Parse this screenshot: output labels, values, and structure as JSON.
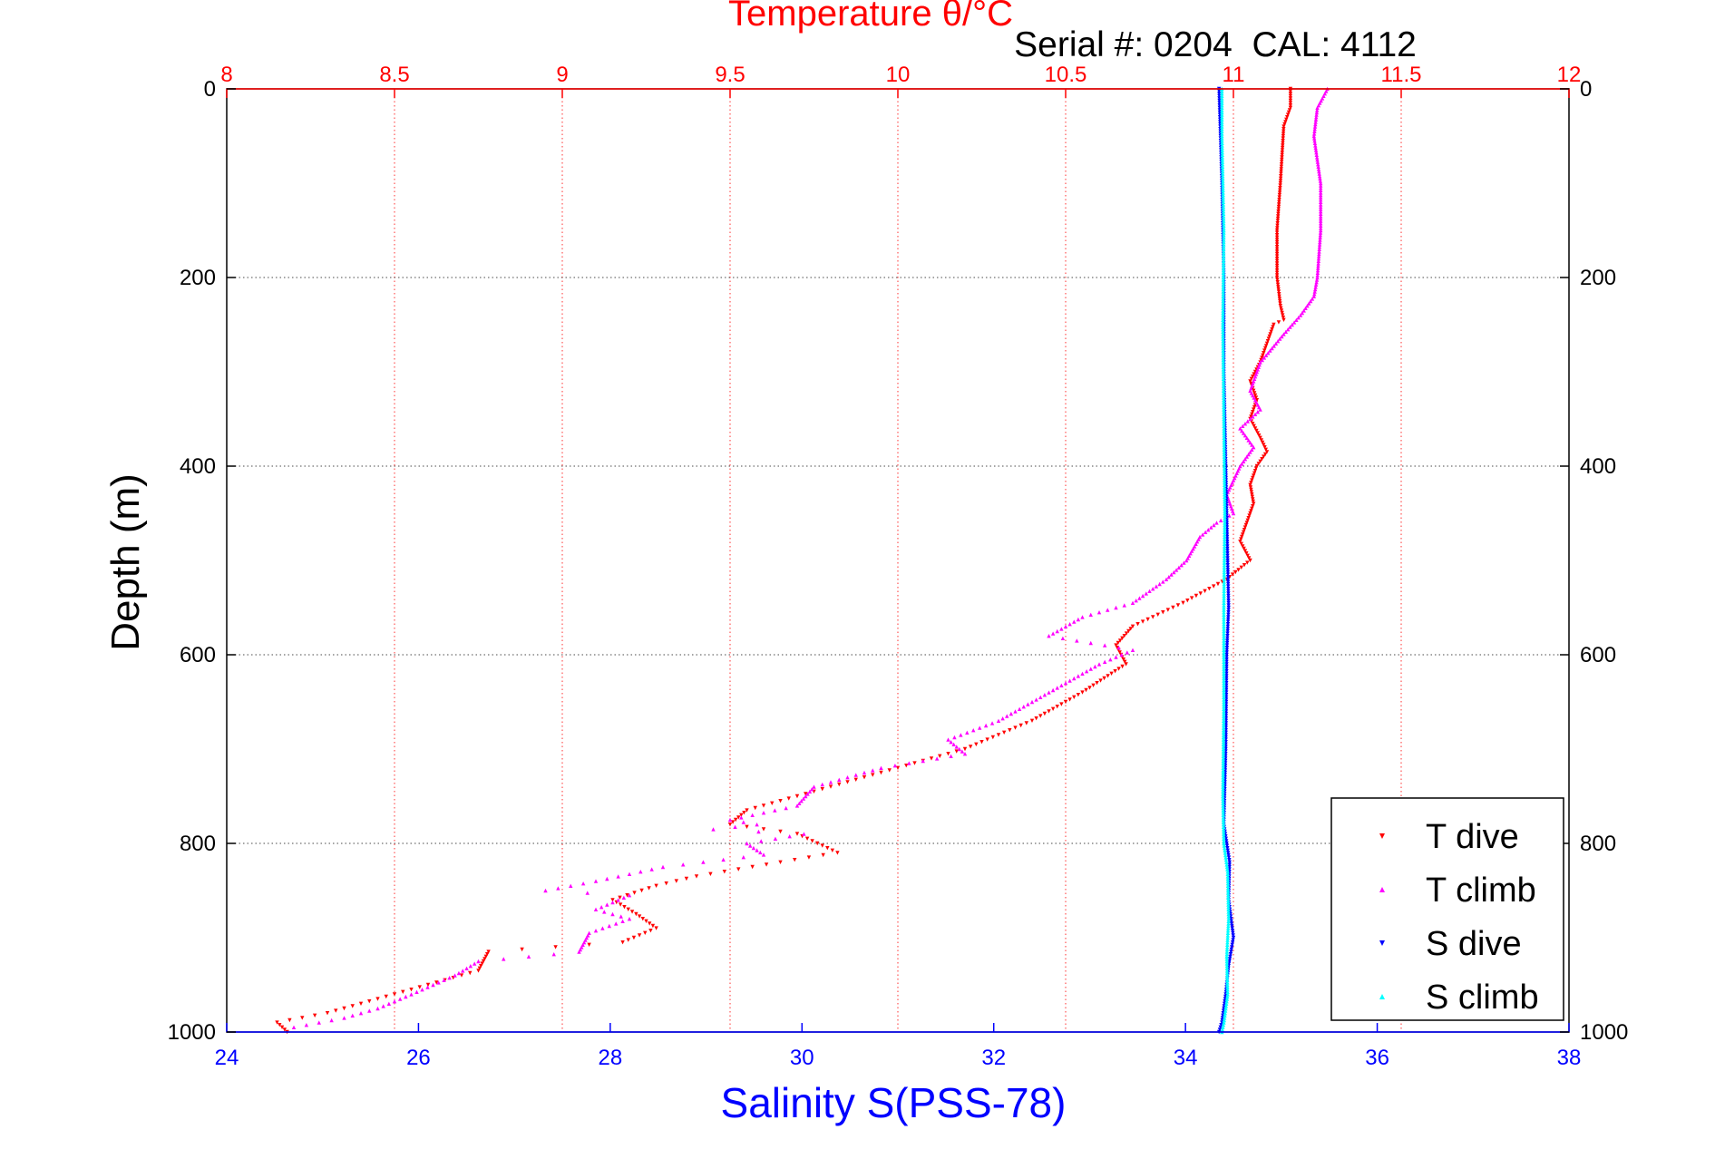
{
  "chart_data": {
    "type": "scatter",
    "title": "Temperature θ/°C",
    "subtitle": "Serial #: 0204  CAL: 4112",
    "xlabel": "Salinity S(PSS-78)",
    "ylabel": "Depth (m)",
    "x_bottom": {
      "label": "Salinity S(PSS-78)",
      "range": [
        24,
        38
      ],
      "ticks": [
        "24",
        "26",
        "28",
        "30",
        "32",
        "34",
        "36",
        "38"
      ],
      "color": "#0000ff"
    },
    "x_top": {
      "label": "Temperature θ/°C",
      "range": [
        8,
        12
      ],
      "ticks": [
        "8",
        "8.5",
        "9",
        "9.5",
        "10",
        "10.5",
        "11",
        "11.5",
        "12"
      ],
      "color": "#ff0000"
    },
    "y": {
      "label": "Depth (m)",
      "range": [
        0,
        1000
      ],
      "inverted": true,
      "ticks": [
        "0",
        "200",
        "400",
        "600",
        "800",
        "1000"
      ]
    },
    "grid": true,
    "legend_position": "bottom-right",
    "series": [
      {
        "name": "T dive",
        "axis": "top",
        "color": "#ff0000",
        "marker": "triangle-down",
        "points": [
          [
            11.17,
            0
          ],
          [
            11.17,
            20
          ],
          [
            11.15,
            40
          ],
          [
            11.14,
            100
          ],
          [
            11.13,
            150
          ],
          [
            11.13,
            200
          ],
          [
            11.14,
            230
          ],
          [
            11.15,
            245
          ],
          [
            11.12,
            250
          ],
          [
            11.1,
            270
          ],
          [
            11.08,
            290
          ],
          [
            11.05,
            310
          ],
          [
            11.07,
            330
          ],
          [
            11.05,
            350
          ],
          [
            11.08,
            370
          ],
          [
            11.1,
            385
          ],
          [
            11.07,
            400
          ],
          [
            11.05,
            420
          ],
          [
            11.06,
            440
          ],
          [
            11.04,
            460
          ],
          [
            11.02,
            480
          ],
          [
            11.05,
            500
          ],
          [
            10.98,
            520
          ],
          [
            10.85,
            545
          ],
          [
            10.7,
            570
          ],
          [
            10.65,
            590
          ],
          [
            10.68,
            610
          ],
          [
            10.55,
            640
          ],
          [
            10.4,
            670
          ],
          [
            10.2,
            700
          ],
          [
            9.95,
            725
          ],
          [
            9.75,
            745
          ],
          [
            9.55,
            765
          ],
          [
            9.5,
            780
          ],
          [
            9.7,
            790
          ],
          [
            9.82,
            810
          ],
          [
            9.65,
            820
          ],
          [
            9.4,
            835
          ],
          [
            9.28,
            845
          ],
          [
            9.15,
            860
          ],
          [
            9.22,
            875
          ],
          [
            9.28,
            890
          ],
          [
            9.18,
            905
          ],
          [
            8.78,
            915
          ],
          [
            8.75,
            935
          ],
          [
            8.6,
            950
          ],
          [
            8.45,
            965
          ],
          [
            8.3,
            980
          ],
          [
            8.15,
            990
          ],
          [
            8.18,
            1000
          ]
        ]
      },
      {
        "name": "T climb",
        "axis": "top",
        "color": "#ff00ff",
        "marker": "triangle-up",
        "points": [
          [
            11.28,
            0
          ],
          [
            11.25,
            20
          ],
          [
            11.24,
            50
          ],
          [
            11.26,
            100
          ],
          [
            11.26,
            150
          ],
          [
            11.25,
            200
          ],
          [
            11.24,
            220
          ],
          [
            11.2,
            240
          ],
          [
            11.15,
            260
          ],
          [
            11.08,
            290
          ],
          [
            11.05,
            320
          ],
          [
            11.08,
            340
          ],
          [
            11.02,
            360
          ],
          [
            11.06,
            380
          ],
          [
            11.02,
            400
          ],
          [
            10.98,
            430
          ],
          [
            11.0,
            450
          ],
          [
            10.95,
            460
          ],
          [
            10.9,
            475
          ],
          [
            10.86,
            500
          ],
          [
            10.8,
            520
          ],
          [
            10.7,
            545
          ],
          [
            10.55,
            560
          ],
          [
            10.45,
            580
          ],
          [
            10.7,
            595
          ],
          [
            10.6,
            610
          ],
          [
            10.5,
            630
          ],
          [
            10.4,
            650
          ],
          [
            10.3,
            670
          ],
          [
            10.15,
            690
          ],
          [
            10.2,
            705
          ],
          [
            9.95,
            720
          ],
          [
            9.75,
            740
          ],
          [
            9.7,
            760
          ],
          [
            9.5,
            775
          ],
          [
            9.58,
            780
          ],
          [
            9.45,
            785
          ],
          [
            9.72,
            790
          ],
          [
            9.55,
            800
          ],
          [
            9.6,
            812
          ],
          [
            9.3,
            825
          ],
          [
            9.1,
            840
          ],
          [
            8.95,
            850
          ],
          [
            9.2,
            855
          ],
          [
            9.1,
            870
          ],
          [
            9.2,
            880
          ],
          [
            9.08,
            895
          ],
          [
            9.05,
            915
          ],
          [
            8.75,
            925
          ],
          [
            8.68,
            940
          ],
          [
            8.55,
            960
          ],
          [
            8.45,
            975
          ],
          [
            8.35,
            985
          ],
          [
            8.2,
            995
          ]
        ]
      },
      {
        "name": "S dive",
        "axis": "bottom",
        "color": "#0000ff",
        "marker": "triangle-down",
        "points": [
          [
            34.35,
            0
          ],
          [
            34.38,
            100
          ],
          [
            34.4,
            200
          ],
          [
            34.4,
            300
          ],
          [
            34.42,
            400
          ],
          [
            34.44,
            500
          ],
          [
            34.45,
            550
          ],
          [
            34.43,
            600
          ],
          [
            34.42,
            700
          ],
          [
            34.4,
            780
          ],
          [
            34.46,
            820
          ],
          [
            34.45,
            860
          ],
          [
            34.5,
            900
          ],
          [
            34.45,
            930
          ],
          [
            34.42,
            960
          ],
          [
            34.38,
            990
          ],
          [
            34.35,
            1000
          ]
        ]
      },
      {
        "name": "S climb",
        "axis": "bottom",
        "color": "#00ffff",
        "marker": "triangle-up",
        "points": [
          [
            34.38,
            0
          ],
          [
            34.38,
            50
          ],
          [
            34.4,
            150
          ],
          [
            34.39,
            250
          ],
          [
            34.4,
            350
          ],
          [
            34.41,
            450
          ],
          [
            34.4,
            550
          ],
          [
            34.4,
            650
          ],
          [
            34.39,
            750
          ],
          [
            34.4,
            800
          ],
          [
            34.44,
            830
          ],
          [
            34.45,
            880
          ],
          [
            34.43,
            920
          ],
          [
            34.44,
            960
          ],
          [
            34.4,
            990
          ],
          [
            34.38,
            1000
          ]
        ]
      }
    ]
  }
}
